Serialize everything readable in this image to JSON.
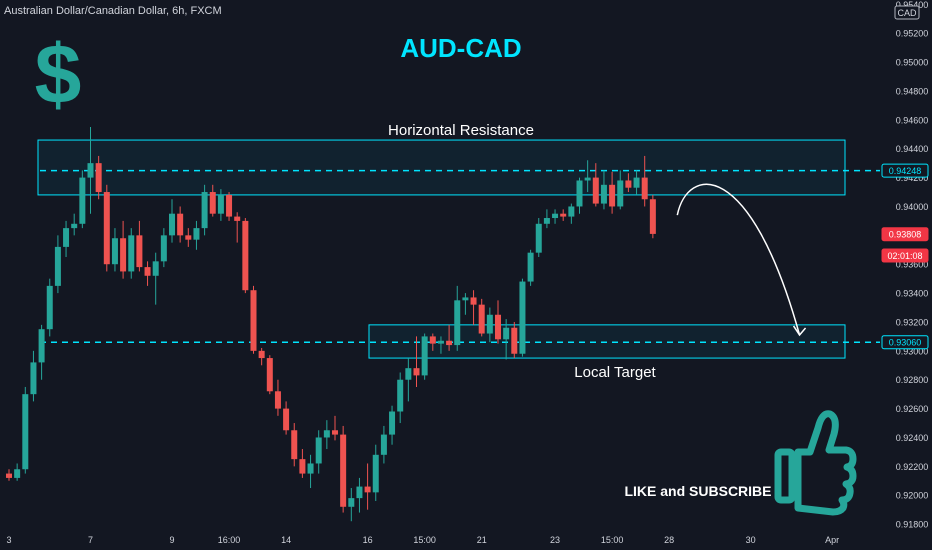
{
  "header": {
    "symbol_text": "Australian Dollar/Canadian Dollar, 6h, FXCM",
    "currency": "CAD"
  },
  "annotations": {
    "title": "AUD-CAD",
    "dollar_glyph": "$",
    "resistance_label": "Horizontal Resistance",
    "target_label": "Local Target",
    "cta": "LIKE and SUBSCRIBE",
    "thumbs_icon": "thumbs-up-icon"
  },
  "colors": {
    "background": "#131722",
    "up": "#26a69a",
    "down": "#ef5350",
    "accent": "#00e5ff",
    "price_tag": "#f23645",
    "text": "#d1d4dc"
  },
  "chart_data": {
    "type": "candlestick",
    "y_axis": {
      "ticks": [
        0.954,
        0.952,
        0.95,
        0.948,
        0.946,
        0.944,
        0.942,
        0.94,
        0.938,
        0.936,
        0.934,
        0.932,
        0.93,
        0.928,
        0.926,
        0.924,
        0.922,
        0.92,
        0.918
      ],
      "tick_labels": [
        "0.95400",
        "0.95200",
        "0.95000",
        "0.94800",
        "0.94600",
        "0.94400",
        "0.94200",
        "0.94000",
        "0.93800",
        "0.93600",
        "0.93400",
        "0.93200",
        "0.93000",
        "0.92800",
        "0.92600",
        "0.92400",
        "0.92200",
        "0.92000",
        "0.91800"
      ],
      "range": [
        0.9178,
        0.9543
      ]
    },
    "x_axis": {
      "labels": [
        {
          "label": "3",
          "index": 0
        },
        {
          "label": "7",
          "index": 10
        },
        {
          "label": "9",
          "index": 20
        },
        {
          "label": "16:00",
          "index": 27
        },
        {
          "label": "14",
          "index": 34
        },
        {
          "label": "16",
          "index": 44
        },
        {
          "label": "15:00",
          "index": 51
        },
        {
          "label": "21",
          "index": 58
        },
        {
          "label": "23",
          "index": 67
        },
        {
          "label": "15:00",
          "index": 74
        },
        {
          "label": "28",
          "index": 81
        },
        {
          "label": "30",
          "index": 91
        },
        {
          "label": "Apr",
          "index": 101
        }
      ]
    },
    "price_markers": [
      {
        "label": "0.94248",
        "value": 0.94248,
        "style": "outline"
      },
      {
        "label": "0.93808",
        "value": 0.93808,
        "style": "filled"
      },
      {
        "label": "02:01:08",
        "value": 0.9366,
        "style": "filled"
      },
      {
        "label": "0.93060",
        "value": 0.9306,
        "style": "outline"
      }
    ],
    "levels": [
      {
        "name": "Horizontal Resistance",
        "low": 0.9408,
        "high": 0.9446,
        "line": 0.94248
      },
      {
        "name": "Local Target",
        "low": 0.9295,
        "high": 0.9318,
        "line": 0.9306
      }
    ],
    "projection": {
      "from_index": 82,
      "from_price": 0.9394,
      "peak_index": 86,
      "peak_price": 0.9421,
      "to_index": 97,
      "to_price": 0.9311
    },
    "candles": [
      [
        0.9215,
        0.9218,
        0.921,
        0.9212
      ],
      [
        0.9212,
        0.9222,
        0.921,
        0.9218
      ],
      [
        0.9218,
        0.9275,
        0.9215,
        0.927
      ],
      [
        0.927,
        0.93,
        0.9265,
        0.9292
      ],
      [
        0.9292,
        0.9318,
        0.928,
        0.9315
      ],
      [
        0.9315,
        0.935,
        0.931,
        0.9345
      ],
      [
        0.9345,
        0.938,
        0.934,
        0.9372
      ],
      [
        0.9372,
        0.939,
        0.9365,
        0.9385
      ],
      [
        0.9385,
        0.9395,
        0.938,
        0.9388
      ],
      [
        0.9388,
        0.9425,
        0.9385,
        0.942
      ],
      [
        0.942,
        0.9455,
        0.9395,
        0.943
      ],
      [
        0.943,
        0.9435,
        0.9405,
        0.941
      ],
      [
        0.941,
        0.9415,
        0.9355,
        0.936
      ],
      [
        0.936,
        0.9385,
        0.9355,
        0.9378
      ],
      [
        0.9378,
        0.939,
        0.935,
        0.9355
      ],
      [
        0.9355,
        0.9385,
        0.935,
        0.938
      ],
      [
        0.938,
        0.939,
        0.9355,
        0.9358
      ],
      [
        0.9358,
        0.9362,
        0.9345,
        0.9352
      ],
      [
        0.9352,
        0.9368,
        0.9332,
        0.9362
      ],
      [
        0.9362,
        0.9385,
        0.9358,
        0.938
      ],
      [
        0.938,
        0.9405,
        0.9375,
        0.9395
      ],
      [
        0.9395,
        0.94,
        0.9375,
        0.938
      ],
      [
        0.938,
        0.9385,
        0.9372,
        0.9377
      ],
      [
        0.9377,
        0.939,
        0.937,
        0.9385
      ],
      [
        0.9385,
        0.9415,
        0.938,
        0.941
      ],
      [
        0.941,
        0.9415,
        0.9393,
        0.9395
      ],
      [
        0.9395,
        0.9412,
        0.939,
        0.9408
      ],
      [
        0.9408,
        0.941,
        0.939,
        0.9393
      ],
      [
        0.9393,
        0.9396,
        0.9375,
        0.939
      ],
      [
        0.939,
        0.9392,
        0.934,
        0.9342
      ],
      [
        0.9342,
        0.9345,
        0.9298,
        0.93
      ],
      [
        0.93,
        0.9302,
        0.929,
        0.9295
      ],
      [
        0.9295,
        0.9297,
        0.927,
        0.9272
      ],
      [
        0.9272,
        0.928,
        0.9255,
        0.926
      ],
      [
        0.926,
        0.9265,
        0.9242,
        0.9245
      ],
      [
        0.9245,
        0.925,
        0.922,
        0.9225
      ],
      [
        0.9225,
        0.9232,
        0.9212,
        0.9215
      ],
      [
        0.9215,
        0.9228,
        0.9205,
        0.9222
      ],
      [
        0.9222,
        0.9245,
        0.9215,
        0.924
      ],
      [
        0.924,
        0.9252,
        0.9232,
        0.9245
      ],
      [
        0.9245,
        0.9255,
        0.9238,
        0.9242
      ],
      [
        0.9242,
        0.9248,
        0.9188,
        0.9192
      ],
      [
        0.9192,
        0.9205,
        0.9182,
        0.9198
      ],
      [
        0.9198,
        0.9212,
        0.9188,
        0.9206
      ],
      [
        0.9206,
        0.9222,
        0.919,
        0.9202
      ],
      [
        0.9202,
        0.9235,
        0.9196,
        0.9228
      ],
      [
        0.9228,
        0.9248,
        0.9222,
        0.9242
      ],
      [
        0.9242,
        0.9262,
        0.9235,
        0.9258
      ],
      [
        0.9258,
        0.9285,
        0.925,
        0.928
      ],
      [
        0.928,
        0.9295,
        0.9265,
        0.9288
      ],
      [
        0.9288,
        0.931,
        0.9275,
        0.9283
      ],
      [
        0.9283,
        0.9312,
        0.928,
        0.931
      ],
      [
        0.931,
        0.9312,
        0.93,
        0.9305
      ],
      [
        0.9305,
        0.931,
        0.9298,
        0.9307
      ],
      [
        0.9307,
        0.9318,
        0.93,
        0.9304
      ],
      [
        0.9304,
        0.9345,
        0.93,
        0.9335
      ],
      [
        0.9335,
        0.934,
        0.9325,
        0.9337
      ],
      [
        0.9337,
        0.9342,
        0.9318,
        0.9332
      ],
      [
        0.9332,
        0.9336,
        0.931,
        0.9312
      ],
      [
        0.9312,
        0.933,
        0.9306,
        0.9325
      ],
      [
        0.9325,
        0.9335,
        0.9305,
        0.9308
      ],
      [
        0.9308,
        0.9322,
        0.9294,
        0.9316
      ],
      [
        0.9316,
        0.932,
        0.9295,
        0.9298
      ],
      [
        0.9298,
        0.935,
        0.9296,
        0.9348
      ],
      [
        0.9348,
        0.937,
        0.9345,
        0.9368
      ],
      [
        0.9368,
        0.9392,
        0.9365,
        0.9388
      ],
      [
        0.9388,
        0.9398,
        0.9385,
        0.9392
      ],
      [
        0.9392,
        0.9398,
        0.9388,
        0.9395
      ],
      [
        0.9395,
        0.9398,
        0.939,
        0.9393
      ],
      [
        0.9393,
        0.9402,
        0.9388,
        0.94
      ],
      [
        0.94,
        0.942,
        0.9395,
        0.9418
      ],
      [
        0.9418,
        0.9432,
        0.941,
        0.942
      ],
      [
        0.942,
        0.943,
        0.94,
        0.9402
      ],
      [
        0.9402,
        0.9425,
        0.9398,
        0.9415
      ],
      [
        0.9415,
        0.9424,
        0.9395,
        0.94
      ],
      [
        0.94,
        0.9425,
        0.9398,
        0.9418
      ],
      [
        0.9418,
        0.9423,
        0.941,
        0.9413
      ],
      [
        0.9413,
        0.9425,
        0.9408,
        0.942
      ],
      [
        0.942,
        0.9435,
        0.94,
        0.9405
      ],
      [
        0.9405,
        0.9408,
        0.9378,
        0.9381
      ]
    ]
  }
}
